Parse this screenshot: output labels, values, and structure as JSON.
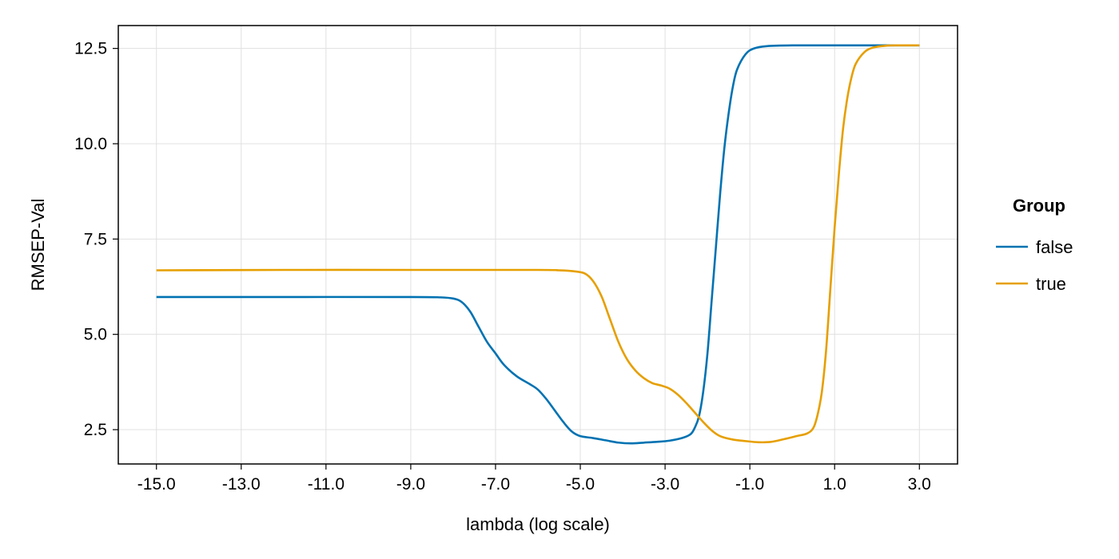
{
  "chart_data": {
    "type": "line",
    "xlabel": "lambda (log scale)",
    "ylabel": "RMSEP-Val",
    "xlim": [
      -15.9,
      3.9
    ],
    "ylim": [
      1.6,
      13.1
    ],
    "xticks": [
      -15,
      -13,
      -11,
      -9,
      -7,
      -5,
      -3,
      -1,
      1,
      3
    ],
    "xtick_labels": [
      "-15.0",
      "-13.0",
      "-11.0",
      "-9.0",
      "-7.0",
      "-5.0",
      "-3.0",
      "-1.0",
      "1.0",
      "3.0"
    ],
    "yticks": [
      2.5,
      5.0,
      7.5,
      10.0,
      12.5
    ],
    "ytick_labels": [
      "2.5",
      "5.0",
      "7.5",
      "10.0",
      "12.5"
    ],
    "grid": true,
    "legend": {
      "title": "Group",
      "position": "right"
    },
    "series": [
      {
        "name": "false",
        "color": "#0072B2",
        "points": [
          [
            -15,
            5.98
          ],
          [
            -12,
            5.98
          ],
          [
            -9,
            5.98
          ],
          [
            -8.3,
            5.97
          ],
          [
            -8.0,
            5.94
          ],
          [
            -7.8,
            5.85
          ],
          [
            -7.6,
            5.6
          ],
          [
            -7.4,
            5.2
          ],
          [
            -7.2,
            4.8
          ],
          [
            -7.0,
            4.5
          ],
          [
            -6.8,
            4.2
          ],
          [
            -6.5,
            3.9
          ],
          [
            -6.2,
            3.7
          ],
          [
            -6.0,
            3.55
          ],
          [
            -5.8,
            3.3
          ],
          [
            -5.6,
            3.0
          ],
          [
            -5.4,
            2.7
          ],
          [
            -5.2,
            2.45
          ],
          [
            -5.0,
            2.33
          ],
          [
            -4.7,
            2.28
          ],
          [
            -4.4,
            2.22
          ],
          [
            -4.1,
            2.16
          ],
          [
            -3.8,
            2.14
          ],
          [
            -3.5,
            2.16
          ],
          [
            -3.2,
            2.18
          ],
          [
            -2.9,
            2.21
          ],
          [
            -2.6,
            2.28
          ],
          [
            -2.4,
            2.38
          ],
          [
            -2.3,
            2.55
          ],
          [
            -2.2,
            2.85
          ],
          [
            -2.1,
            3.5
          ],
          [
            -2.0,
            4.5
          ],
          [
            -1.9,
            5.9
          ],
          [
            -1.8,
            7.3
          ],
          [
            -1.7,
            8.7
          ],
          [
            -1.6,
            9.9
          ],
          [
            -1.5,
            10.8
          ],
          [
            -1.4,
            11.5
          ],
          [
            -1.3,
            11.95
          ],
          [
            -1.1,
            12.35
          ],
          [
            -0.9,
            12.5
          ],
          [
            -0.6,
            12.56
          ],
          [
            0,
            12.58
          ],
          [
            1,
            12.58
          ],
          [
            2,
            12.58
          ],
          [
            3,
            12.58
          ]
        ]
      },
      {
        "name": "true",
        "color": "#E69F00",
        "points": [
          [
            -15,
            6.68
          ],
          [
            -12,
            6.69
          ],
          [
            -9,
            6.69
          ],
          [
            -6,
            6.69
          ],
          [
            -5.5,
            6.68
          ],
          [
            -5.2,
            6.66
          ],
          [
            -4.9,
            6.6
          ],
          [
            -4.7,
            6.4
          ],
          [
            -4.5,
            6.0
          ],
          [
            -4.3,
            5.4
          ],
          [
            -4.1,
            4.8
          ],
          [
            -3.9,
            4.35
          ],
          [
            -3.7,
            4.05
          ],
          [
            -3.5,
            3.85
          ],
          [
            -3.3,
            3.72
          ],
          [
            -3.1,
            3.66
          ],
          [
            -2.9,
            3.58
          ],
          [
            -2.7,
            3.42
          ],
          [
            -2.5,
            3.2
          ],
          [
            -2.3,
            2.95
          ],
          [
            -2.1,
            2.7
          ],
          [
            -1.9,
            2.48
          ],
          [
            -1.7,
            2.33
          ],
          [
            -1.4,
            2.24
          ],
          [
            -1.1,
            2.2
          ],
          [
            -0.8,
            2.17
          ],
          [
            -0.5,
            2.18
          ],
          [
            -0.2,
            2.25
          ],
          [
            0.1,
            2.33
          ],
          [
            0.35,
            2.4
          ],
          [
            0.5,
            2.55
          ],
          [
            0.6,
            2.9
          ],
          [
            0.7,
            3.5
          ],
          [
            0.8,
            4.6
          ],
          [
            0.9,
            6.2
          ],
          [
            1.0,
            7.8
          ],
          [
            1.1,
            9.2
          ],
          [
            1.2,
            10.4
          ],
          [
            1.3,
            11.2
          ],
          [
            1.4,
            11.75
          ],
          [
            1.5,
            12.1
          ],
          [
            1.7,
            12.4
          ],
          [
            1.9,
            12.52
          ],
          [
            2.2,
            12.57
          ],
          [
            2.6,
            12.58
          ],
          [
            3.0,
            12.58
          ]
        ]
      }
    ]
  }
}
